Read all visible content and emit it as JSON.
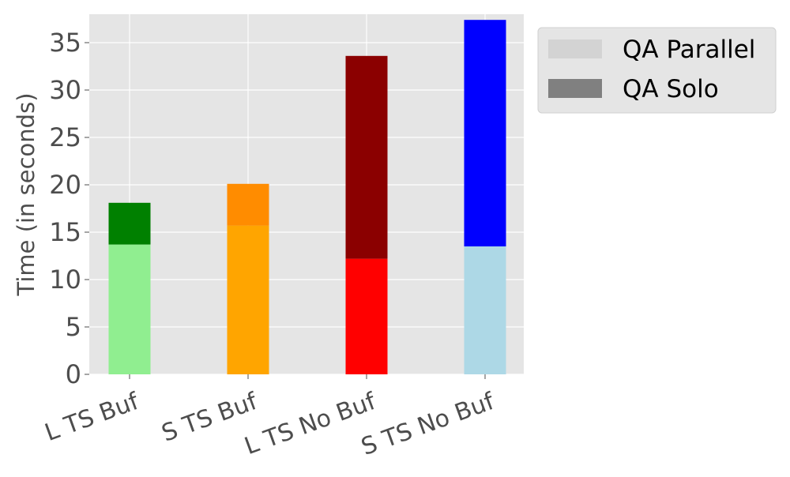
{
  "chart_data": {
    "type": "bar",
    "stacked": true,
    "categories": [
      "L TS Buf",
      "S TS Buf",
      "L TS No Buf",
      "S TS No Buf"
    ],
    "series": [
      {
        "name": "QA Parallel",
        "values": [
          13.7,
          15.7,
          12.2,
          13.5
        ],
        "colors": [
          "#90ee90",
          "#ffa500",
          "#ff0000",
          "#add8e6"
        ],
        "legend_color": "#d3d3d3"
      },
      {
        "name": "QA Solo",
        "values": [
          4.4,
          4.4,
          21.4,
          23.9
        ],
        "colors": [
          "#008000",
          "#ff8c00",
          "#8b0000",
          "#0000ff"
        ],
        "legend_color": "#808080"
      }
    ],
    "ylabel": "Time (in seconds)",
    "ylim": [
      0,
      38
    ],
    "yticks": [
      0,
      5,
      10,
      15,
      20,
      25,
      30,
      35
    ],
    "grid": true,
    "legend_position": "outside-top-right",
    "plot_background": "#e5e5e5"
  }
}
